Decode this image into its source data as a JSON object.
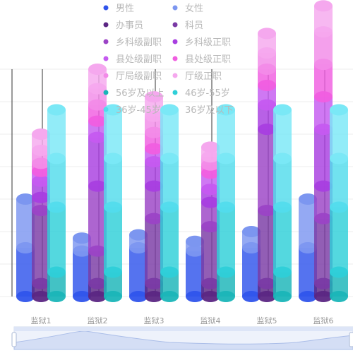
{
  "chart_data": {
    "type": "bar",
    "title": "",
    "xlabel": "",
    "ylabel": "",
    "categories": [
      "监狱1",
      "监狱2",
      "监狱3",
      "监狱4",
      "监狱5",
      "监狱6"
    ],
    "groups": [
      {
        "name": "gender",
        "series": [
          {
            "name": "男性",
            "color": "#2f54eb",
            "values": [
              30,
              28,
              30,
              28,
              30,
              30
            ]
          },
          {
            "name": "女性",
            "color": "#7c96f0",
            "values": [
              30,
              8,
              8,
              6,
              10,
              30
            ]
          }
        ]
      },
      {
        "name": "rank",
        "series": [
          {
            "name": "办事员",
            "color": "#5b2683",
            "values": [
              8,
              8,
              8,
              8,
              8,
              8
            ]
          },
          {
            "name": "科员",
            "color": "#7a3aa5",
            "values": [
              45,
              20,
              40,
              35,
              45,
              40
            ]
          },
          {
            "name": "乡科级副职",
            "color": "#9b43c6",
            "values": [
              8,
              40,
              20,
              15,
              50,
              20
            ]
          },
          {
            "name": "乡科级正职",
            "color": "#a83ee0",
            "values": [
              10,
              30,
              15,
              8,
              15,
              35
            ]
          },
          {
            "name": "县处级副职",
            "color": "#c55af0",
            "values": [
              6,
              10,
              8,
              10,
              12,
              20
            ]
          },
          {
            "name": "县处级正职",
            "color": "#f05ee0",
            "values": [
              5,
              10,
              10,
              5,
              10,
              20
            ]
          },
          {
            "name": "厅局级副职",
            "color": "#f28be8",
            "values": [
              8,
              10,
              10,
              5,
              10,
              20
            ]
          },
          {
            "name": "厅级正职",
            "color": "#f5a8ee",
            "values": [
              10,
              12,
              12,
              6,
              12,
              16
            ]
          }
        ]
      },
      {
        "name": "age",
        "series": [
          {
            "name": "56岁及以上",
            "color": "#1ab5b8",
            "values": [
              15,
              15,
              15,
              15,
              15,
              15
            ]
          },
          {
            "name": "46岁-55岁",
            "color": "#2ecfd8",
            "values": [
              40,
              40,
              40,
              40,
              40,
              40
            ]
          },
          {
            "name": "36岁-45岁",
            "color": "#52dcec",
            "values": [
              30,
              30,
              30,
              30,
              30,
              30
            ]
          },
          {
            "name": "36岁及以下",
            "color": "#7ae8f6",
            "values": [
              30,
              30,
              30,
              30,
              30,
              30
            ]
          }
        ]
      }
    ],
    "ylim": [
      0,
      140
    ],
    "grid": true,
    "legend_position": "top-center",
    "datazoom": true
  }
}
